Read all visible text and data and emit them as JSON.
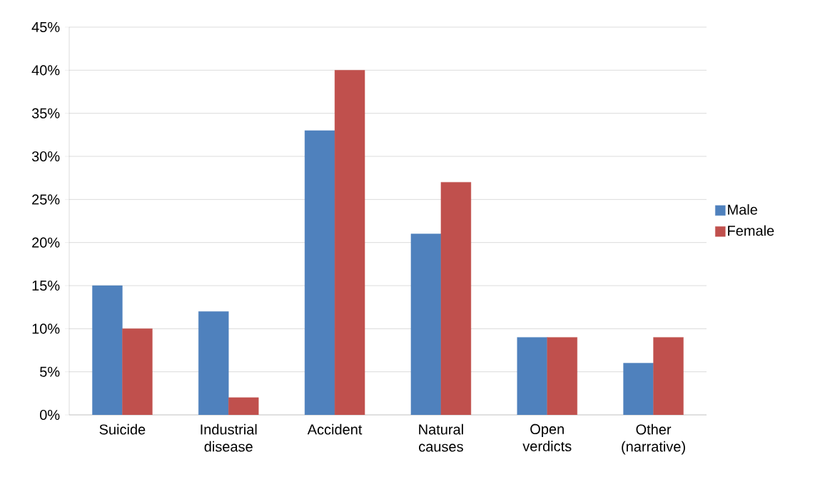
{
  "chart_data": {
    "type": "bar",
    "categories": [
      "Suicide",
      "Industrial disease",
      "Accident",
      "Natural causes",
      "Open verdicts",
      "Other (narrative)"
    ],
    "series": [
      {
        "name": "Male",
        "color": "#4f81bd",
        "values": [
          15,
          12,
          33,
          21,
          9,
          6
        ]
      },
      {
        "name": "Female",
        "color": "#c0504d",
        "values": [
          10,
          2,
          40,
          27,
          9,
          9
        ]
      }
    ],
    "ylim": [
      0,
      45
    ],
    "yticks": [
      {
        "value": 0,
        "label": "0%"
      },
      {
        "value": 5,
        "label": "5%"
      },
      {
        "value": 10,
        "label": "10%"
      },
      {
        "value": 15,
        "label": "15%"
      },
      {
        "value": 20,
        "label": "20%"
      },
      {
        "value": 25,
        "label": "25%"
      },
      {
        "value": 30,
        "label": "30%"
      },
      {
        "value": 35,
        "label": "35%"
      },
      {
        "value": 40,
        "label": "40%"
      },
      {
        "value": 45,
        "label": "45%"
      }
    ],
    "grid": "y",
    "legend": "right"
  }
}
